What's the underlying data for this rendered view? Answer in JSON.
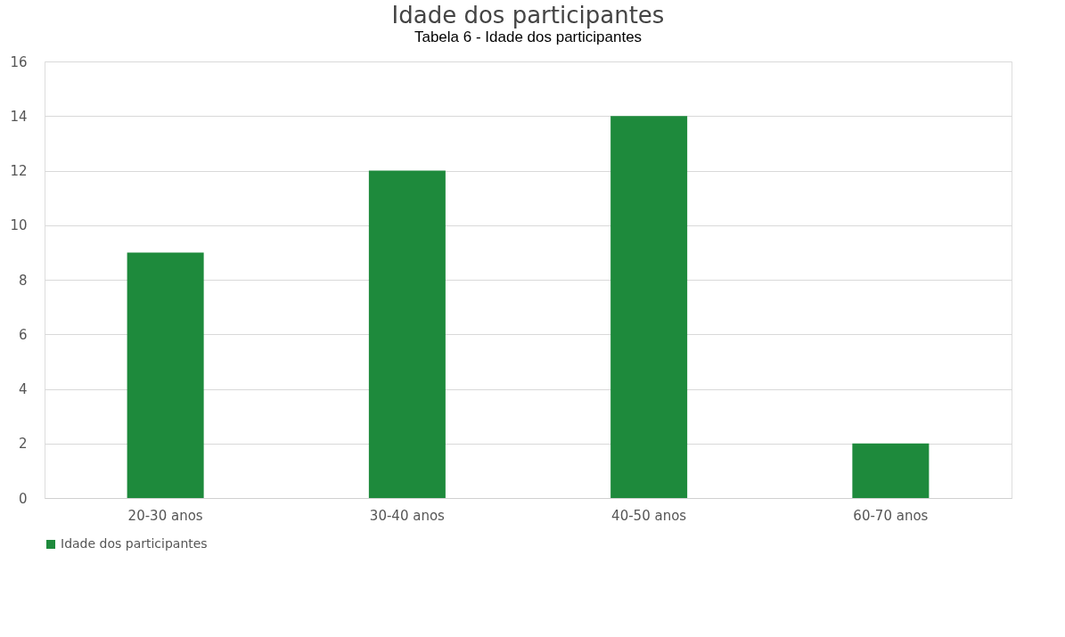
{
  "chart_data": {
    "type": "bar",
    "title": "Idade dos participantes",
    "annotations": [
      "Tabela 6 - Idade dos participantes"
    ],
    "categories": [
      "20-30 anos",
      "30-40 anos",
      "40-50 anos",
      "60-70 anos"
    ],
    "series": [
      {
        "name": "Idade dos participantes",
        "color": "#1e8a3c",
        "values": [
          9,
          12,
          14,
          2
        ]
      }
    ],
    "ylim": [
      0,
      16
    ],
    "yticks": [
      0,
      2,
      4,
      6,
      8,
      10,
      12,
      14,
      16
    ],
    "grid": "y",
    "legend": "bottom"
  }
}
